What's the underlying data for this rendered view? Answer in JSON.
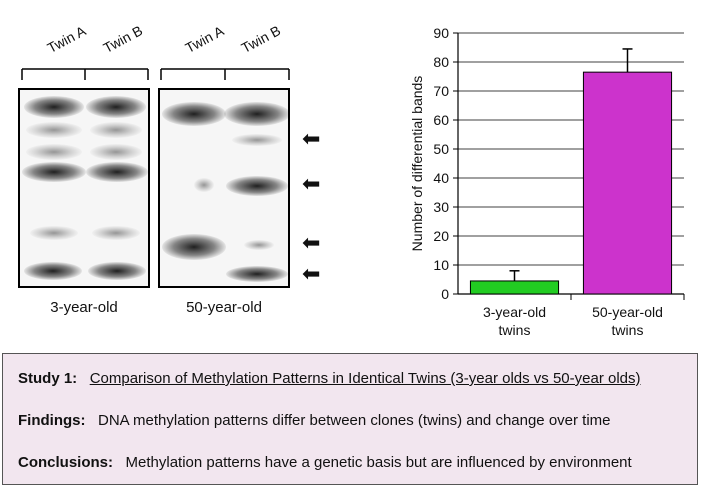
{
  "gels": {
    "lane_labels": {
      "twin_a": "Twin A",
      "twin_b": "Twin B"
    },
    "left_caption": "3-year-old",
    "right_caption": "50-year-old"
  },
  "chart_data": {
    "type": "bar",
    "categories": [
      "3-year-old twins",
      "50-year-old twins"
    ],
    "category_lines": [
      [
        "3-year-old",
        "twins"
      ],
      [
        "50-year-old",
        "twins"
      ]
    ],
    "values": [
      4.5,
      76.5
    ],
    "error_bars": [
      3.5,
      8
    ],
    "colors": [
      "#22cc22",
      "#cc33cc"
    ],
    "ylabel": "Number of differential bands",
    "ylim": [
      0,
      90
    ],
    "yticks": [
      0,
      10,
      20,
      30,
      40,
      50,
      60,
      70,
      80,
      90
    ],
    "grid": true
  },
  "study": {
    "study_label": "Study 1:",
    "study_text": "Comparison of Methylation Patterns in Identical Twins (3-year olds vs 50-year olds)",
    "findings_label": "Findings:",
    "findings_text": "DNA methylation patterns differ between clones (twins) and change over time",
    "conclusions_label": "Conclusions:",
    "conclusions_text": "Methylation patterns have a genetic basis but are influenced by environment"
  },
  "colors": {
    "box_fill": "#f2e6ef"
  }
}
